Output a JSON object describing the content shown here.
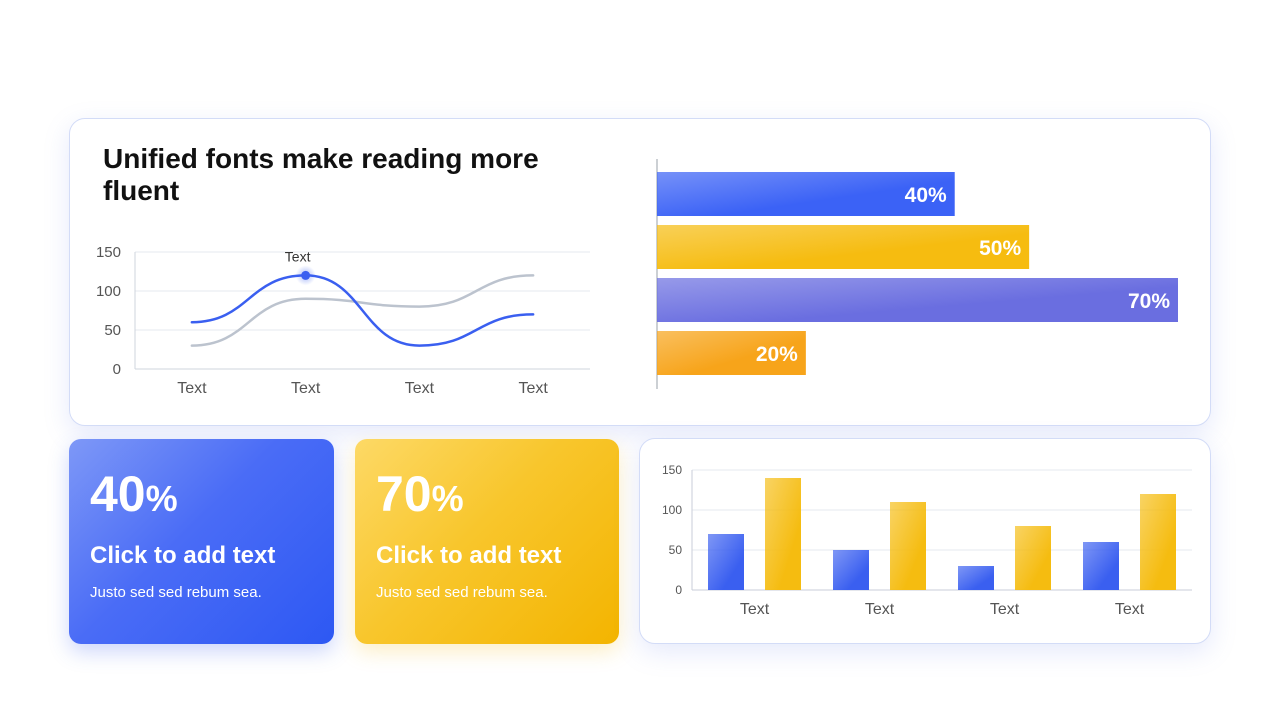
{
  "top": {
    "title": "Unified fonts make reading more fluent"
  },
  "cards": [
    {
      "value": "40",
      "unit": "%",
      "title": "Click to add text",
      "subtitle": "Justo sed sed rebum sea.",
      "color": "#3a62f5"
    },
    {
      "value": "70",
      "unit": "%",
      "title": "Click to add text",
      "subtitle": "Justo sed sed rebum sea.",
      "color": "#f5b800"
    }
  ],
  "chart_data": [
    {
      "type": "line",
      "categories": [
        "Text",
        "Text",
        "Text",
        "Text"
      ],
      "series": [
        {
          "values": [
            60,
            120,
            30,
            70
          ],
          "color": "#3a5ff0"
        },
        {
          "values": [
            30,
            90,
            80,
            120
          ],
          "color": "#bcc3ce"
        }
      ],
      "ylim": [
        0,
        150
      ],
      "yticks": [
        0,
        50,
        100,
        150
      ],
      "grid": true,
      "annotation": {
        "text": "Text",
        "category_index": 1,
        "series_index": 0
      }
    },
    {
      "type": "bar",
      "orientation": "horizontal",
      "categories": [
        "",
        "",
        "",
        ""
      ],
      "values": [
        40,
        50,
        70,
        20
      ],
      "labels": [
        "40%",
        "50%",
        "70%",
        "20%"
      ],
      "colors": [
        "#3b62f6",
        "#f6bc10",
        "#6a6ee0",
        "#f7a41a"
      ],
      "xlim": [
        0,
        70
      ]
    },
    {
      "type": "bar",
      "categories": [
        "Text",
        "Text",
        "Text",
        "Text"
      ],
      "series": [
        {
          "values": [
            70,
            50,
            30,
            60
          ],
          "color": "#3a5ff0"
        },
        {
          "values": [
            140,
            110,
            80,
            120
          ],
          "color": "#f5bc10"
        }
      ],
      "ylim": [
        0,
        150
      ],
      "yticks": [
        0,
        50,
        100,
        150
      ],
      "grid": true
    }
  ]
}
